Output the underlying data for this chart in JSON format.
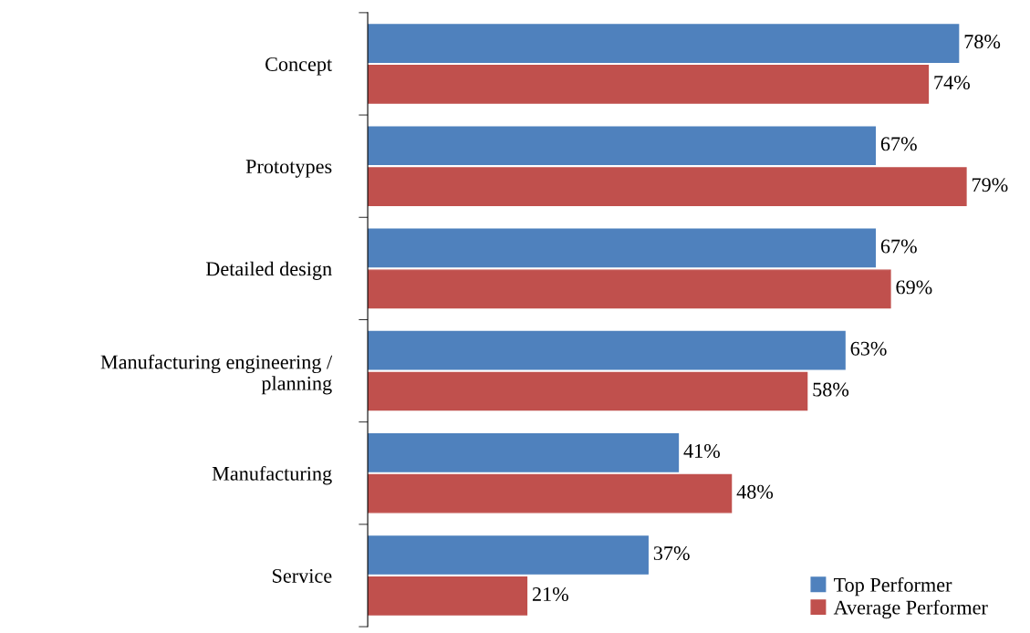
{
  "chart_data": {
    "type": "bar",
    "orientation": "horizontal",
    "categories": [
      "Concept",
      "Prototypes",
      "Detailed design",
      "Manufacturing engineering /\nplanning",
      "Manufacturing",
      "Service"
    ],
    "series": [
      {
        "name": "Top Performer",
        "color": "#4f81bd",
        "values": [
          78,
          67,
          67,
          63,
          41,
          37
        ],
        "value_labels": [
          "78%",
          "67%",
          "67%",
          "63%",
          "41%",
          "37%"
        ]
      },
      {
        "name": "Average Performer",
        "color": "#c0504d",
        "values": [
          74,
          79,
          69,
          58,
          48,
          21
        ],
        "value_labels": [
          "74%",
          "79%",
          "69%",
          "58%",
          "48%",
          "21%"
        ]
      }
    ],
    "legend": "bottom right",
    "grid": false
  }
}
